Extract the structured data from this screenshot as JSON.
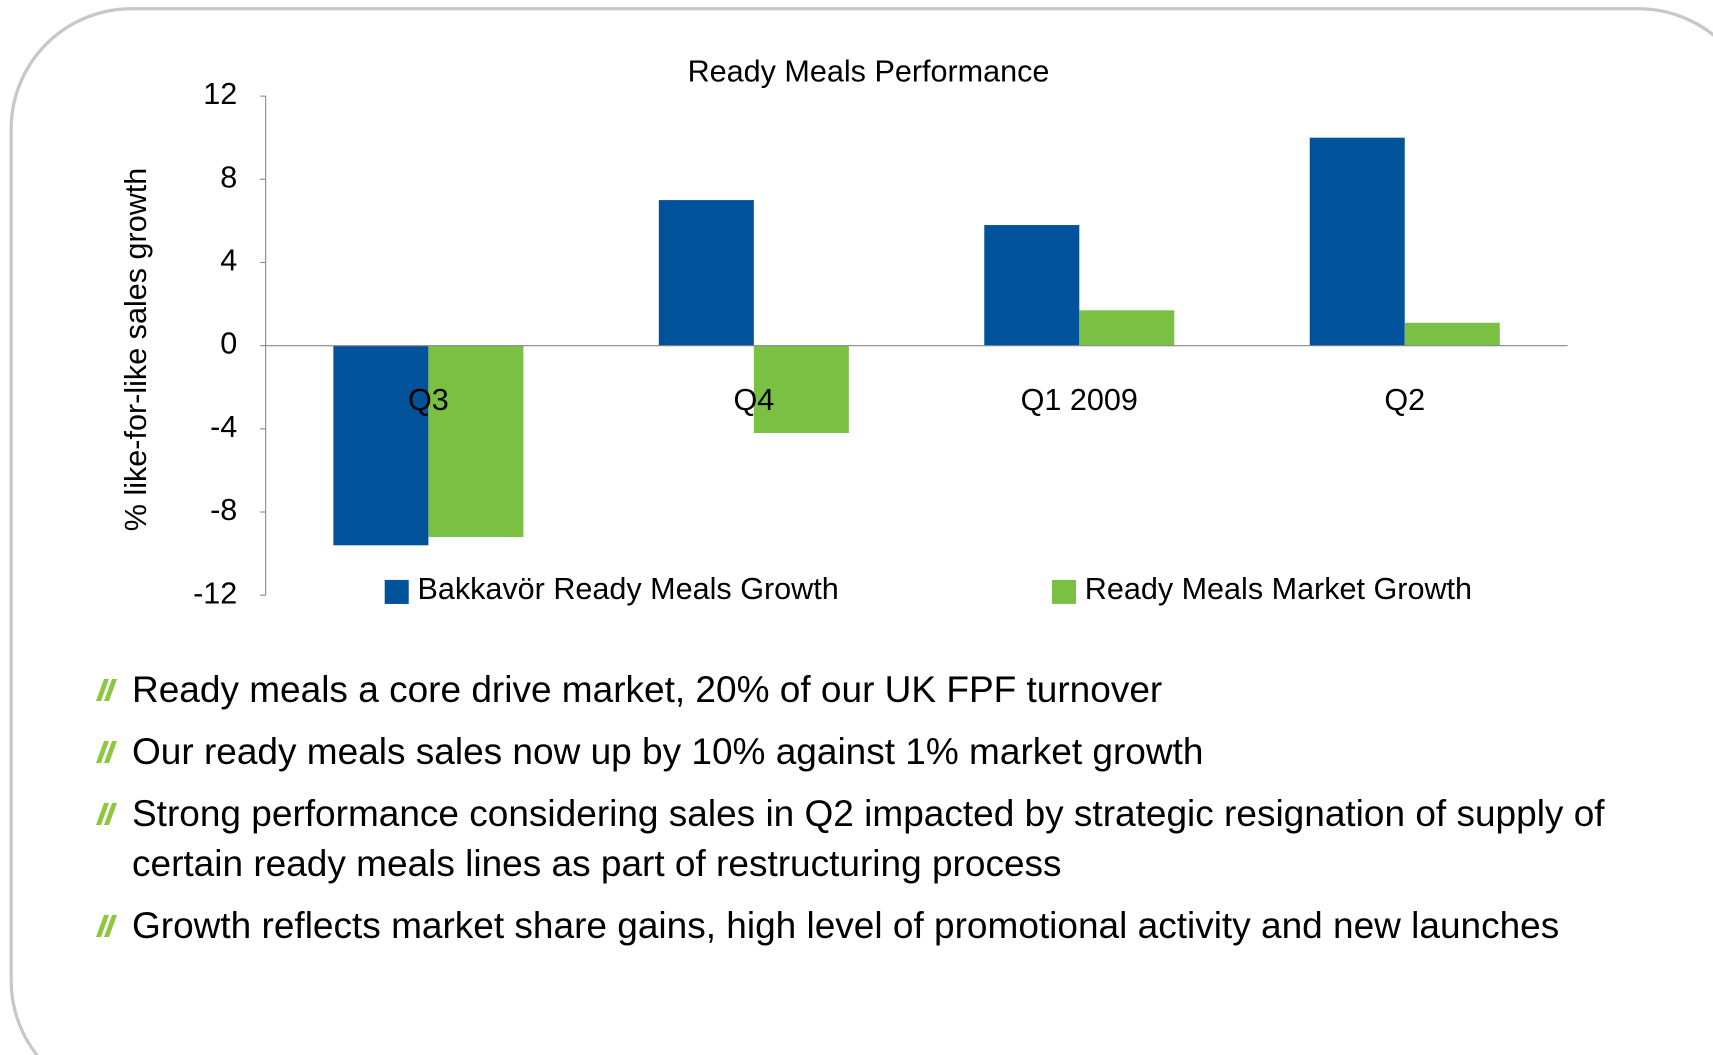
{
  "chart_data": {
    "type": "bar",
    "title": "Ready Meals Performance",
    "y_label": "% like-for-like sales growth",
    "categories": [
      "Q3",
      "Q4",
      "Q1 2009",
      "Q2"
    ],
    "series": [
      {
        "name": "Bakkavör Ready Meals Growth",
        "color": "#00539b",
        "values": [
          -9.6,
          7.0,
          5.8,
          10.0
        ]
      },
      {
        "name": "Ready Meals Market Growth",
        "color": "#7ac143",
        "values": [
          -9.2,
          -4.2,
          1.7,
          1.1
        ]
      }
    ],
    "ylim": [
      -12,
      12
    ],
    "yticks": [
      -12,
      -8,
      -4,
      0,
      4,
      8,
      12
    ],
    "grid": false,
    "legend": "bottom"
  },
  "bullets": [
    "Ready meals a core drive market, 20% of our UK FPF turnover",
    "Our ready meals sales now up by 10% against 1% market growth",
    "Strong performance considering sales in Q2 impacted by strategic resignation of supply of certain ready meals lines as part of restructuring process",
    "Growth reflects market share gains, high level of promotional activity and new launches"
  ]
}
